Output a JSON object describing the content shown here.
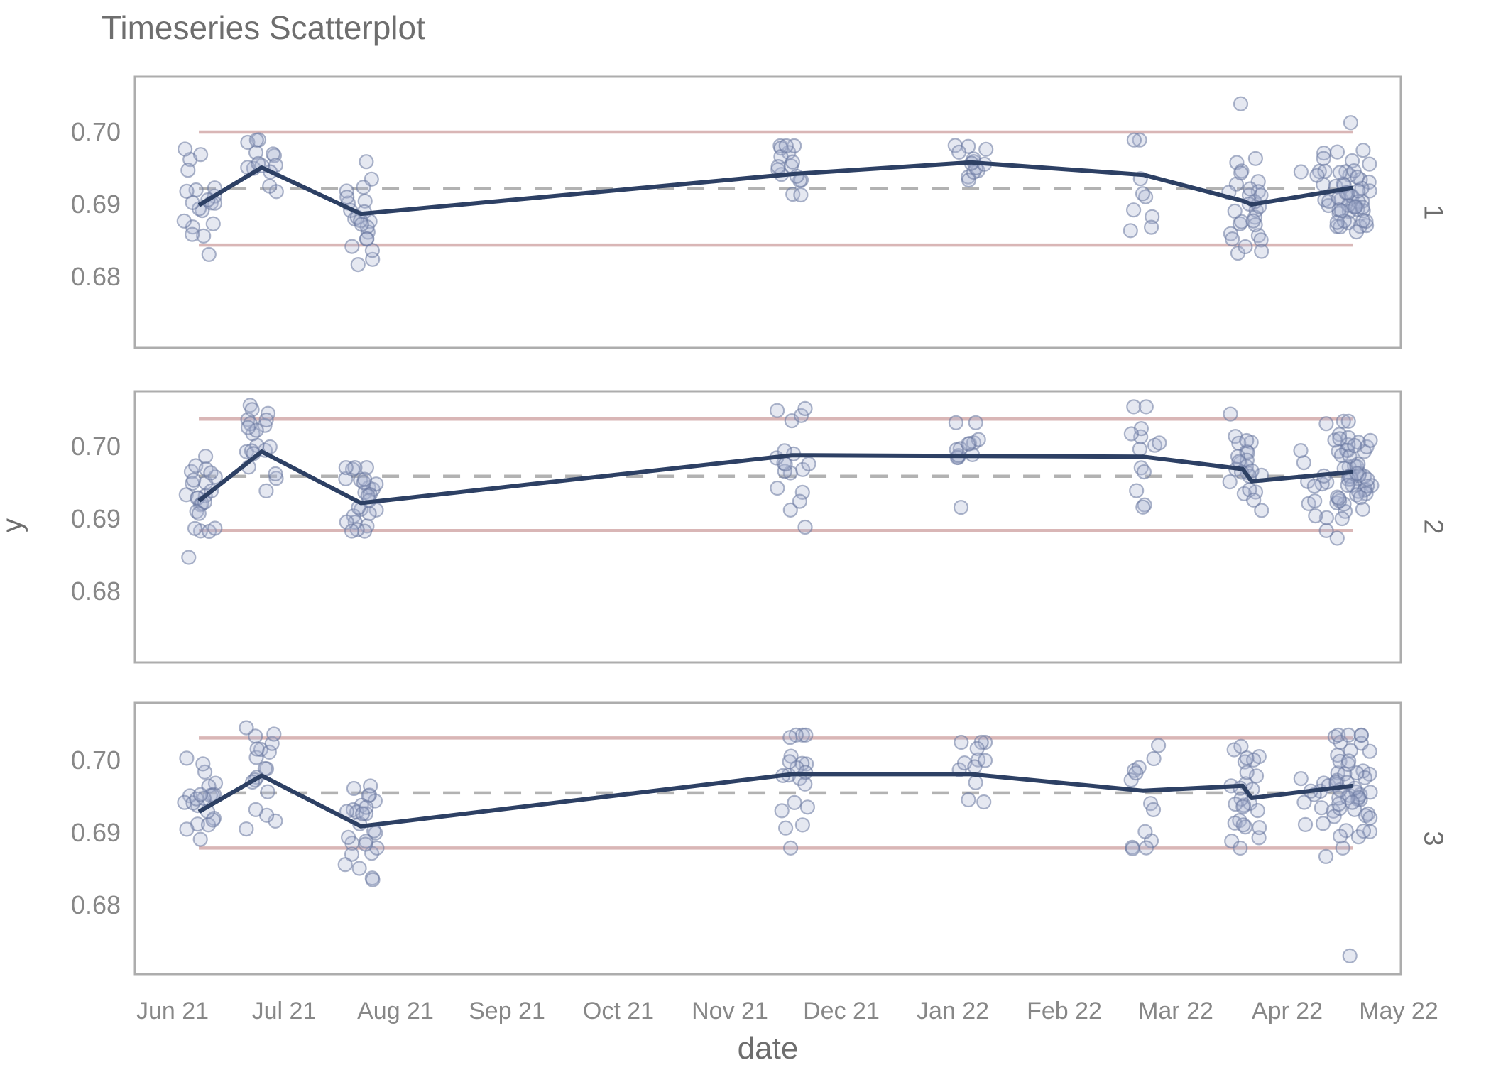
{
  "chart_data": {
    "type": "scatter",
    "title": "Timeseries Scatterplot",
    "xlabel": "date",
    "ylabel": "y",
    "x_tick_labels": [
      "Jun 21",
      "Jul 21",
      "Aug 21",
      "Sep 21",
      "Oct 21",
      "Nov 21",
      "Dec 21",
      "Jan 22",
      "Feb 22",
      "Mar 22",
      "Apr 22",
      "May 22"
    ],
    "y_tick_labels": [
      "0.70",
      "0.69",
      "0.68"
    ],
    "y_tick_values": [
      0.7,
      0.69,
      0.68
    ],
    "grid": "off",
    "legend": "none",
    "line_span": [
      0.236,
      10.59
    ],
    "colors": {
      "points_fill": "#a8b4cf",
      "points_stroke": "#67779f",
      "mean_line": "#2d4064",
      "limit_lines": "#d9b6b6",
      "center_line": "#b2b2b2",
      "panel_border": "#adadad",
      "title_text": "#6e6e6e",
      "tick_text": "#878787"
    },
    "facets": [
      {
        "label": "1",
        "center_line": 0.6923,
        "ucl": 0.7001,
        "lcl": 0.6845,
        "mean_line": [
          [
            0.236,
            0.69
          ],
          [
            0.8,
            0.6952
          ],
          [
            1.69,
            0.6888
          ],
          [
            5.56,
            0.6943
          ],
          [
            7.16,
            0.6959
          ],
          [
            8.71,
            0.6942
          ],
          [
            9.6,
            0.6906
          ],
          [
            9.68,
            0.6901
          ],
          [
            10.59,
            0.6924
          ]
        ],
        "clusters": [
          {
            "x": 0.236,
            "n": 20,
            "mean": 0.69,
            "sd": 0.0035,
            "min": 0.6832,
            "max": 0.6982
          },
          {
            "x": 0.8,
            "n": 14,
            "mean": 0.6955,
            "sd": 0.0028,
            "min": 0.6838,
            "max": 0.6996
          },
          {
            "x": 1.69,
            "n": 22,
            "mean": 0.689,
            "sd": 0.0034,
            "min": 0.6818,
            "max": 0.6968
          },
          {
            "x": 5.56,
            "n": 16,
            "mean": 0.6942,
            "sd": 0.0027,
            "min": 0.6888,
            "max": 0.6982
          },
          {
            "x": 7.16,
            "n": 13,
            "mean": 0.6958,
            "sd": 0.002,
            "min": 0.6902,
            "max": 0.6986
          },
          {
            "x": 8.71,
            "n": 9,
            "mean": 0.6942,
            "sd": 0.004,
            "min": 0.6842,
            "max": 0.699
          },
          {
            "x": 9.62,
            "n": 28,
            "mean": 0.6902,
            "sd": 0.0036,
            "min": 0.6798,
            "max": 0.6992,
            "outliers": [
              0.704
            ]
          },
          {
            "x": 10.27,
            "n": 10,
            "mean": 0.6936,
            "sd": 0.0026,
            "min": 0.6842,
            "max": 0.6972
          },
          {
            "x": 10.59,
            "n": 46,
            "mean": 0.6926,
            "sd": 0.003,
            "min": 0.6856,
            "max": 0.6998,
            "outliers": [
              0.7014
            ],
            "xspread": 0.17
          }
        ]
      },
      {
        "label": "2",
        "center_line": 0.696,
        "ucl": 0.7039,
        "lcl": 0.6885,
        "mean_line": [
          [
            0.236,
            0.6926
          ],
          [
            0.8,
            0.6994
          ],
          [
            1.69,
            0.6923
          ],
          [
            5.56,
            0.6989
          ],
          [
            7.16,
            0.6988
          ],
          [
            8.71,
            0.6987
          ],
          [
            9.6,
            0.697
          ],
          [
            9.68,
            0.6953
          ],
          [
            10.59,
            0.6966
          ]
        ],
        "clusters": [
          {
            "x": 0.236,
            "n": 24,
            "mean": 0.6925,
            "sd": 0.004,
            "min": 0.6848,
            "max": 0.7002
          },
          {
            "x": 0.8,
            "n": 20,
            "mean": 0.6988,
            "sd": 0.004,
            "min": 0.6872,
            "max": 0.7058
          },
          {
            "x": 1.69,
            "n": 26,
            "mean": 0.6916,
            "sd": 0.0035,
            "min": 0.6836,
            "max": 0.6972
          },
          {
            "x": 5.56,
            "n": 18,
            "mean": 0.6986,
            "sd": 0.004,
            "min": 0.6886,
            "max": 0.7064
          },
          {
            "x": 7.16,
            "n": 13,
            "mean": 0.699,
            "sd": 0.003,
            "min": 0.6888,
            "max": 0.7034
          },
          {
            "x": 8.71,
            "n": 13,
            "mean": 0.6988,
            "sd": 0.004,
            "min": 0.6866,
            "max": 0.7056
          },
          {
            "x": 9.62,
            "n": 24,
            "mean": 0.697,
            "sd": 0.004,
            "min": 0.6822,
            "max": 0.7046
          },
          {
            "x": 10.27,
            "n": 13,
            "mean": 0.6964,
            "sd": 0.004,
            "min": 0.6842,
            "max": 0.7036
          },
          {
            "x": 10.59,
            "n": 50,
            "mean": 0.6962,
            "sd": 0.0036,
            "min": 0.6832,
            "max": 0.7036,
            "xspread": 0.17
          }
        ]
      },
      {
        "label": "3",
        "center_line": 0.6956,
        "ucl": 0.7032,
        "lcl": 0.688,
        "mean_line": [
          [
            0.236,
            0.693
          ],
          [
            0.8,
            0.698
          ],
          [
            1.69,
            0.691
          ],
          [
            5.56,
            0.6982
          ],
          [
            7.16,
            0.6982
          ],
          [
            8.71,
            0.6959
          ],
          [
            9.6,
            0.6966
          ],
          [
            9.68,
            0.6949
          ],
          [
            10.59,
            0.6966
          ]
        ],
        "clusters": [
          {
            "x": 0.236,
            "n": 22,
            "mean": 0.6928,
            "sd": 0.0036,
            "min": 0.687,
            "max": 0.7004
          },
          {
            "x": 0.8,
            "n": 18,
            "mean": 0.6972,
            "sd": 0.0046,
            "min": 0.6852,
            "max": 0.7046
          },
          {
            "x": 1.69,
            "n": 26,
            "mean": 0.6912,
            "sd": 0.0036,
            "min": 0.6826,
            "max": 0.6978
          },
          {
            "x": 5.56,
            "n": 20,
            "mean": 0.6974,
            "sd": 0.004,
            "min": 0.688,
            "max": 0.7036
          },
          {
            "x": 7.16,
            "n": 12,
            "mean": 0.698,
            "sd": 0.003,
            "min": 0.6912,
            "max": 0.7026
          },
          {
            "x": 8.71,
            "n": 13,
            "mean": 0.6964,
            "sd": 0.0042,
            "min": 0.6832,
            "max": 0.7044
          },
          {
            "x": 9.62,
            "n": 26,
            "mean": 0.6956,
            "sd": 0.004,
            "min": 0.6824,
            "max": 0.7036
          },
          {
            "x": 10.27,
            "n": 12,
            "mean": 0.695,
            "sd": 0.0034,
            "min": 0.6866,
            "max": 0.7004
          },
          {
            "x": 10.59,
            "n": 48,
            "mean": 0.6962,
            "sd": 0.0036,
            "min": 0.688,
            "max": 0.7036,
            "outliers": [
              0.6731
            ],
            "xspread": 0.17
          }
        ]
      }
    ]
  }
}
